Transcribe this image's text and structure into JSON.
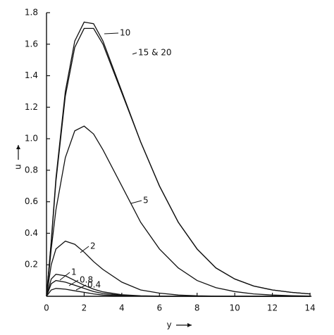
{
  "chart_data": {
    "type": "line",
    "color": "#111111",
    "x_label": "y",
    "y_label": "u",
    "x": [
      0,
      0.25,
      0.5,
      1,
      1.5,
      2,
      2.5,
      3,
      4,
      5,
      6,
      7,
      8,
      9,
      10,
      11,
      12,
      13,
      14
    ],
    "series": [
      {
        "name": "10",
        "values": [
          0,
          0.35,
          0.75,
          1.3,
          1.62,
          1.74,
          1.73,
          1.62,
          1.3,
          0.98,
          0.7,
          0.47,
          0.3,
          0.18,
          0.11,
          0.065,
          0.04,
          0.025,
          0.015
        ]
      },
      {
        "name": "15 & 20",
        "values": [
          0,
          0.34,
          0.73,
          1.27,
          1.58,
          1.7,
          1.7,
          1.6,
          1.29,
          0.98,
          0.7,
          0.47,
          0.3,
          0.18,
          0.11,
          0.065,
          0.04,
          0.025,
          0.015
        ]
      },
      {
        "name": "5",
        "values": [
          0,
          0.3,
          0.55,
          0.88,
          1.05,
          1.08,
          1.03,
          0.93,
          0.7,
          0.47,
          0.3,
          0.18,
          0.1,
          0.055,
          0.03,
          0.015,
          0.008,
          0.004,
          0.002
        ]
      },
      {
        "name": "2",
        "values": [
          0,
          0.2,
          0.3,
          0.35,
          0.33,
          0.28,
          0.22,
          0.17,
          0.09,
          0.04,
          0.02,
          0.008,
          0.003,
          0.001,
          0,
          0,
          0,
          0,
          0
        ]
      },
      {
        "name": "1",
        "values": [
          0,
          0.11,
          0.14,
          0.13,
          0.1,
          0.07,
          0.045,
          0.028,
          0.01,
          0.003,
          0.001,
          0,
          0,
          0,
          0,
          0,
          0,
          0,
          0
        ]
      },
      {
        "name": "0.8",
        "values": [
          0,
          0.08,
          0.1,
          0.09,
          0.07,
          0.05,
          0.03,
          0.018,
          0.006,
          0.002,
          0,
          0,
          0,
          0,
          0,
          0,
          0,
          0,
          0
        ]
      },
      {
        "name": "0.4",
        "values": [
          0,
          0.04,
          0.05,
          0.045,
          0.035,
          0.025,
          0.015,
          0.008,
          0.003,
          0.001,
          0,
          0,
          0,
          0,
          0,
          0,
          0,
          0,
          0
        ]
      }
    ],
    "xlim": [
      0,
      14
    ],
    "xticks": [
      0,
      2,
      4,
      6,
      8,
      10,
      12,
      14
    ],
    "ylim": [
      0,
      1.8
    ],
    "yticks": [
      0.2,
      0.4,
      0.6,
      0.8,
      {
        "value": 1,
        "label": "1.0"
      },
      1.2,
      1.4,
      1.6,
      1.8
    ]
  }
}
